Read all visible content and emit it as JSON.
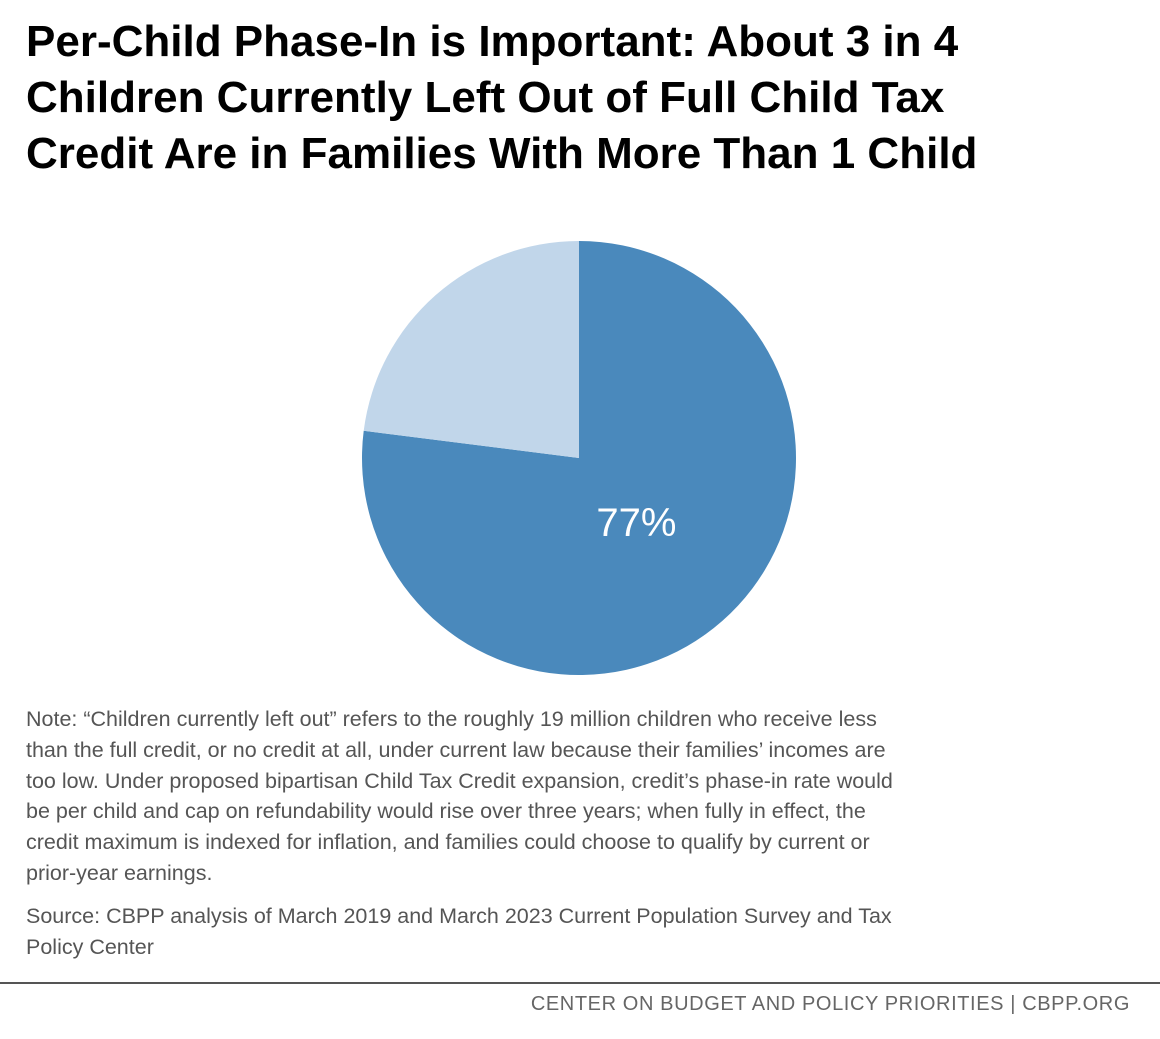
{
  "title_lines": [
    "Per-Child Phase-In is Important: About 3 in 4",
    "Children Currently Left Out of Full Child Tax",
    "Credit Are in Families With More Than 1 Child"
  ],
  "chart_data": {
    "type": "pie",
    "title": "Per-Child Phase-In is Important: About 3 in 4 Children Currently Left Out of Full Child Tax Credit Are in Families With More Than 1 Child",
    "slices": [
      {
        "value": 77,
        "label": "77%",
        "color": "#4a89bc"
      },
      {
        "value": 23,
        "label": "",
        "color": "#c1d6ea"
      }
    ],
    "start_angle": "12 o'clock",
    "direction": "clockwise"
  },
  "note_lines": [
    "Note: “Children currently left out” refers to the roughly 19 million children who receive less",
    "than the full credit, or no credit at all, under current law because their families’ incomes are",
    "too low. Under proposed bipartisan Child Tax Credit expansion, credit’s phase-in rate would",
    "be per child and cap on refundability would rise over three years; when fully in effect, the",
    "credit maximum is indexed for inflation, and families could choose to qualify by current or",
    "prior-year earnings."
  ],
  "source_lines": [
    "Source: CBPP analysis of March 2019 and March 2023 Current Population Survey and Tax",
    "Policy Center"
  ],
  "footer": "CENTER ON BUDGET AND POLICY PRIORITIES | CBPP.ORG"
}
